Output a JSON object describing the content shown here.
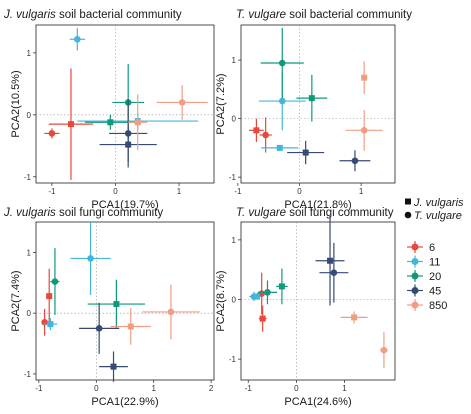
{
  "legend": {
    "shape": [
      {
        "shape": "square",
        "label": "J. vulgaris"
      },
      {
        "shape": "circle",
        "label": "T. vulgare"
      }
    ],
    "color": [
      {
        "label": "6",
        "color": "#e8473c"
      },
      {
        "label": "11",
        "color": "#45b5dc"
      },
      {
        "label": "20",
        "color": "#0e9a7a"
      },
      {
        "label": "45",
        "color": "#354a76"
      },
      {
        "label": "850",
        "color": "#f09e83"
      }
    ]
  },
  "chart_data": [
    {
      "type": "scatter",
      "title_italic": "J. vulgaris",
      "title_rest": " soil bacterial community",
      "xlabel": "PCA1(19.7%)",
      "ylabel": "PCA2(10.5%)",
      "xlim": [
        -1.25,
        1.55
      ],
      "ylim": [
        -1.1,
        1.45
      ],
      "xticks": [
        -1,
        0,
        1
      ],
      "yticks": [
        -1,
        0,
        1
      ],
      "points": [
        {
          "group": "6",
          "shape": "circle",
          "x": -1.0,
          "y": -0.3,
          "xerr": 0.12,
          "yerr": 0.08
        },
        {
          "group": "6",
          "shape": "square",
          "x": -0.7,
          "y": -0.15,
          "xerr": 0.35,
          "yerr": 0.9
        },
        {
          "group": "11",
          "shape": "circle",
          "x": -0.6,
          "y": 1.22,
          "xerr": 0.12,
          "yerr": 0.18
        },
        {
          "group": "11",
          "shape": "square",
          "x": 0.35,
          "y": -0.1,
          "xerr": 0.95,
          "yerr": 0.12
        },
        {
          "group": "20",
          "shape": "circle",
          "x": 0.2,
          "y": 0.2,
          "xerr": 0.25,
          "yerr": 0.62
        },
        {
          "group": "20",
          "shape": "square",
          "x": -0.08,
          "y": -0.12,
          "xerr": 0.4,
          "yerr": 0.12
        },
        {
          "group": "45",
          "shape": "circle",
          "x": 0.2,
          "y": -0.3,
          "xerr": 0.3,
          "yerr": 0.55
        },
        {
          "group": "45",
          "shape": "square",
          "x": 0.2,
          "y": -0.48,
          "xerr": 0.45,
          "yerr": 0.28
        },
        {
          "group": "850",
          "shape": "circle",
          "x": 1.05,
          "y": 0.2,
          "xerr": 0.4,
          "yerr": 0.28
        },
        {
          "group": "850",
          "shape": "square",
          "x": 0.35,
          "y": -0.12,
          "xerr": 0.15,
          "yerr": 0.45
        }
      ]
    },
    {
      "type": "scatter",
      "title_italic": "T. vulgare",
      "title_rest": " soil bacterial community",
      "xlabel": "PCA1(21.8%)",
      "ylabel": "PCA2(7.2%)",
      "xlim": [
        -0.95,
        1.55
      ],
      "ylim": [
        -1.1,
        1.6
      ],
      "xticks": [
        -1,
        0,
        1
      ],
      "yticks": [
        -1,
        0,
        1
      ],
      "points": [
        {
          "group": "6",
          "shape": "circle",
          "x": -0.55,
          "y": -0.28,
          "xerr": 0.1,
          "yerr": 0.3
        },
        {
          "group": "6",
          "shape": "square",
          "x": -0.7,
          "y": -0.2,
          "xerr": 0.12,
          "yerr": 0.2
        },
        {
          "group": "11",
          "shape": "circle",
          "x": -0.28,
          "y": 0.3,
          "xerr": 0.38,
          "yerr": 0.5
        },
        {
          "group": "11",
          "shape": "square",
          "x": -0.32,
          "y": -0.5,
          "xerr": 0.3,
          "yerr": 0.05
        },
        {
          "group": "20",
          "shape": "circle",
          "x": -0.28,
          "y": 0.95,
          "xerr": 0.35,
          "yerr": 0.6
        },
        {
          "group": "20",
          "shape": "square",
          "x": 0.2,
          "y": 0.35,
          "xerr": 0.25,
          "yerr": 0.4
        },
        {
          "group": "45",
          "shape": "circle",
          "x": 0.9,
          "y": -0.72,
          "xerr": 0.25,
          "yerr": 0.18
        },
        {
          "group": "45",
          "shape": "square",
          "x": 0.1,
          "y": -0.58,
          "xerr": 0.3,
          "yerr": 0.2
        },
        {
          "group": "850",
          "shape": "circle",
          "x": 1.05,
          "y": -0.2,
          "xerr": 0.3,
          "yerr": 0.35
        },
        {
          "group": "850",
          "shape": "square",
          "x": 1.05,
          "y": 0.7,
          "xerr": 0.05,
          "yerr": 0.28
        }
      ]
    },
    {
      "type": "scatter",
      "title_italic": "J. vulgaris",
      "title_rest": " soil fungi community",
      "xlabel": "PCA1(22.9%)",
      "ylabel": "PCA2(7.4%)",
      "xlim": [
        -1.05,
        2.05
      ],
      "ylim": [
        -1.1,
        1.5
      ],
      "xticks": [
        -1,
        0,
        1,
        2
      ],
      "yticks": [
        -1,
        0,
        1
      ],
      "points": [
        {
          "group": "6",
          "shape": "circle",
          "x": -0.9,
          "y": -0.15,
          "xerr": 0.05,
          "yerr": 0.22
        },
        {
          "group": "6",
          "shape": "square",
          "x": -0.82,
          "y": 0.28,
          "xerr": 0.05,
          "yerr": 0.45
        },
        {
          "group": "11",
          "shape": "circle",
          "x": -0.1,
          "y": 0.9,
          "xerr": 0.35,
          "yerr": 0.6
        },
        {
          "group": "11",
          "shape": "square",
          "x": -0.8,
          "y": -0.18,
          "xerr": 0.12,
          "yerr": 0.1
        },
        {
          "group": "20",
          "shape": "circle",
          "x": -0.72,
          "y": 0.52,
          "xerr": 0.08,
          "yerr": 0.55
        },
        {
          "group": "20",
          "shape": "square",
          "x": 0.35,
          "y": 0.15,
          "xerr": 0.5,
          "yerr": 0.4
        },
        {
          "group": "45",
          "shape": "circle",
          "x": 0.05,
          "y": -0.25,
          "xerr": 0.35,
          "yerr": 0.42
        },
        {
          "group": "45",
          "shape": "square",
          "x": 0.3,
          "y": -0.88,
          "xerr": 0.25,
          "yerr": 0.25
        },
        {
          "group": "850",
          "shape": "circle",
          "x": 1.3,
          "y": 0.02,
          "xerr": 0.5,
          "yerr": 0.45
        },
        {
          "group": "850",
          "shape": "square",
          "x": 0.6,
          "y": -0.22,
          "xerr": 0.35,
          "yerr": 0.3
        }
      ]
    },
    {
      "type": "scatter",
      "title_italic": "T. vulgare",
      "title_rest": " soil fungi community",
      "xlabel": "PCA1(24.6%)",
      "ylabel": "PCA2(8.7%)",
      "xlim": [
        -1.15,
        2.05
      ],
      "ylim": [
        -1.35,
        1.3
      ],
      "xticks": [
        -1,
        0,
        1
      ],
      "yticks": [
        -1,
        0,
        1
      ],
      "points": [
        {
          "group": "6",
          "shape": "circle",
          "x": -0.72,
          "y": 0.1,
          "xerr": 0.1,
          "yerr": 0.35
        },
        {
          "group": "6",
          "shape": "square",
          "x": -0.7,
          "y": -0.32,
          "xerr": 0.08,
          "yerr": 0.22
        },
        {
          "group": "11",
          "shape": "circle",
          "x": -0.88,
          "y": 0.05,
          "xerr": 0.1,
          "yerr": 0.08
        },
        {
          "group": "11",
          "shape": "square",
          "x": -0.82,
          "y": 0.05,
          "xerr": 0.08,
          "yerr": 0.05
        },
        {
          "group": "20",
          "shape": "circle",
          "x": -0.6,
          "y": 0.12,
          "xerr": 0.2,
          "yerr": 0.2
        },
        {
          "group": "20",
          "shape": "square",
          "x": -0.3,
          "y": 0.22,
          "xerr": 0.12,
          "yerr": 0.3
        },
        {
          "group": "45",
          "shape": "circle",
          "x": 0.78,
          "y": 0.45,
          "xerr": 0.3,
          "yerr": 0.5
        },
        {
          "group": "45",
          "shape": "square",
          "x": 0.7,
          "y": 0.65,
          "xerr": 0.3,
          "yerr": 0.75
        },
        {
          "group": "850",
          "shape": "circle",
          "x": 1.82,
          "y": -0.85,
          "xerr": 0.08,
          "yerr": 0.3
        },
        {
          "group": "850",
          "shape": "square",
          "x": 1.2,
          "y": -0.3,
          "xerr": 0.28,
          "yerr": 0.1
        }
      ]
    }
  ]
}
